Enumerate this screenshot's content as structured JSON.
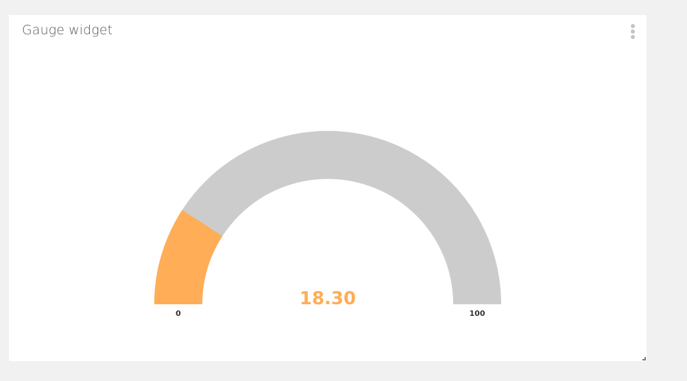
{
  "widget": {
    "title": "Gauge widget",
    "menu_icon": "vertical-ellipsis-icon",
    "resize_icon": "resize-corner-icon"
  },
  "gauge": {
    "value": 18.3,
    "value_text": "18.30",
    "min": 0,
    "max": 100,
    "min_label": "0",
    "max_label": "100",
    "fill_color": "#ffad56",
    "track_color": "#cccccc"
  }
}
